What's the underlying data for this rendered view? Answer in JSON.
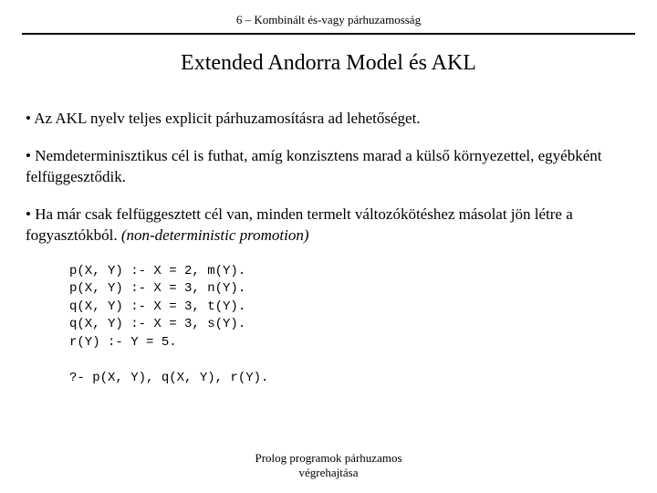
{
  "header": "6 – Kombinált és-vagy párhuzamosság",
  "title": "Extended Andorra Model és AKL",
  "bullets": [
    {
      "text": "• Az AKL nyelv teljes explicit párhuzamosításra ad lehetőséget."
    },
    {
      "text": "• Nemdeterminisztikus cél is futhat, amíg konzisztens marad a külső környezettel, egyébként felfüggesztődik."
    },
    {
      "text": "• Ha már csak felfüggesztett cél van, minden termelt változókötéshez másolat jön létre a fogyasztókból. ",
      "italic": "(non-deterministic promotion)"
    }
  ],
  "code": "p(X, Y) :- X = 2, m(Y).\np(X, Y) :- X = 3, n(Y).\nq(X, Y) :- X = 3, t(Y).\nq(X, Y) :- X = 3, s(Y).\nr(Y) :- Y = 5.\n\n?- p(X, Y), q(X, Y), r(Y).",
  "footer_line1": "Prolog programok párhuzamos",
  "footer_line2": "végrehajtása"
}
